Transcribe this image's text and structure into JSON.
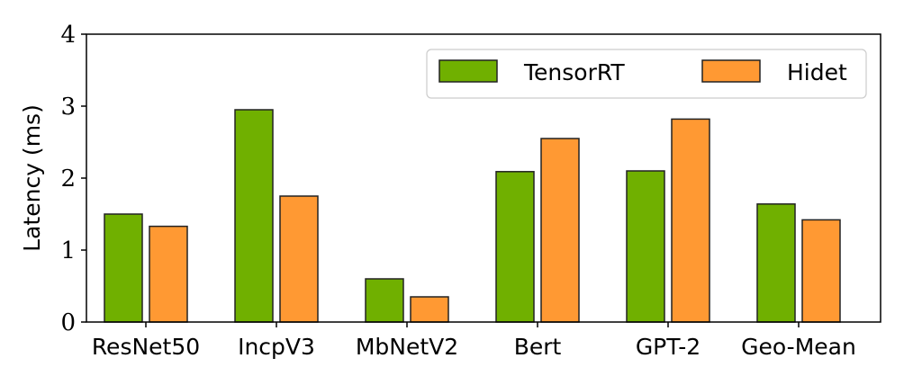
{
  "chart_data": {
    "type": "bar",
    "categories": [
      "ResNet50",
      "IncpV3",
      "MbNetV2",
      "Bert",
      "GPT-2",
      "Geo-Mean"
    ],
    "series": [
      {
        "name": "TensorRT",
        "color": "#70b000",
        "values": [
          1.5,
          2.95,
          0.6,
          2.09,
          2.1,
          1.64
        ]
      },
      {
        "name": "Hidet",
        "color": "#ff9933",
        "values": [
          1.33,
          1.75,
          0.35,
          2.55,
          2.82,
          1.42
        ]
      }
    ],
    "title": "",
    "xlabel": "",
    "ylabel": "Latency (ms)",
    "ylim": [
      0,
      4
    ],
    "yticks": [
      "0",
      "1",
      "2",
      "3",
      "4"
    ],
    "grid": false,
    "legend_position": "top-right"
  }
}
